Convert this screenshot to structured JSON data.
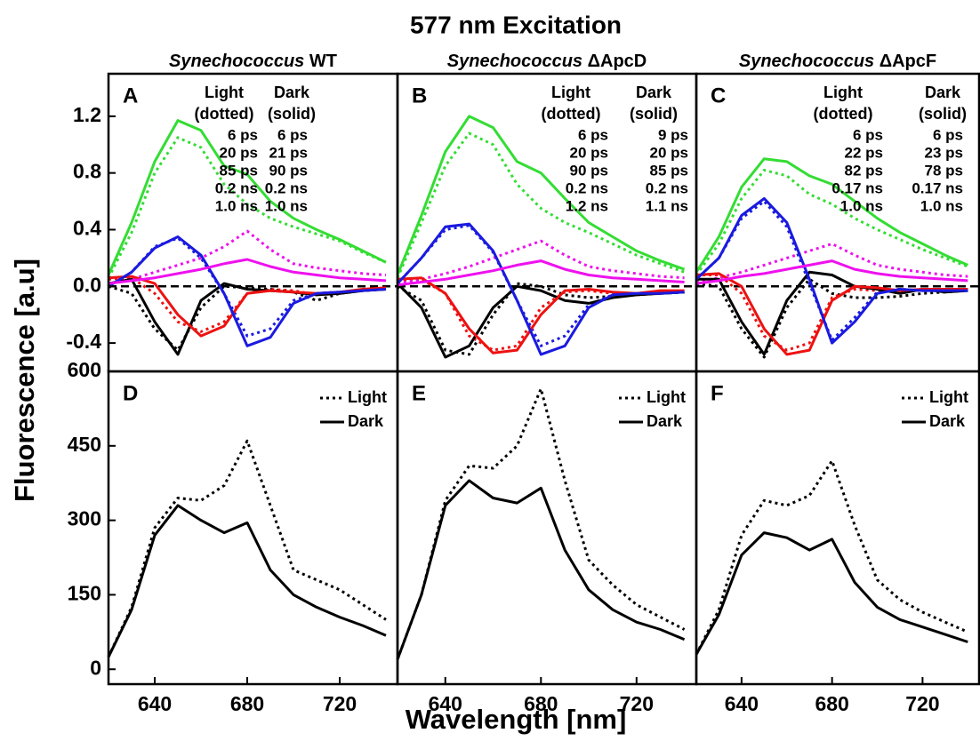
{
  "title": "577 nm Excitation",
  "x_label": "Wavelength [nm]",
  "y_label": "Fluorescence [a.u]",
  "chart_data": [
    {
      "type": "line",
      "panel_label": "A",
      "subtitle_italic": "Synechococcus",
      "subtitle": "WT",
      "legend_titles": [
        [
          "Light",
          "(dotted)"
        ],
        [
          "Dark",
          "(solid)"
        ]
      ],
      "x": [
        620,
        630,
        640,
        650,
        660,
        670,
        680,
        690,
        700,
        710,
        720,
        730,
        740
      ],
      "xlim": [
        620,
        745
      ],
      "ylim": [
        -0.6,
        1.5
      ],
      "yticks": [
        -0.4,
        {
          "value": 0,
          "label": "0.0"
        },
        0.4,
        0.8,
        1.2
      ],
      "zero_line": true,
      "series": [
        {
          "name": "6 ps",
          "color": "#000000",
          "dash": "dotted",
          "values": [
            0.0,
            -0.05,
            -0.3,
            -0.45,
            -0.15,
            0.0,
            -0.01,
            -0.02,
            -0.04,
            -0.1,
            -0.05,
            -0.03,
            -0.02
          ]
        },
        {
          "name": "20 ps",
          "color": "#ee1111",
          "dash": "dotted",
          "values": [
            0.05,
            0.06,
            -0.05,
            -0.25,
            -0.32,
            -0.25,
            -0.05,
            -0.02,
            -0.03,
            -0.06,
            -0.05,
            -0.03,
            -0.02
          ]
        },
        {
          "name": "85 ps",
          "color": "#1a1ae0",
          "dash": "dotted",
          "values": [
            0.0,
            0.1,
            0.28,
            0.34,
            0.2,
            -0.05,
            -0.35,
            -0.3,
            -0.1,
            -0.05,
            -0.04,
            -0.03,
            -0.02
          ]
        },
        {
          "name": "0.2 ns",
          "color": "#33dd33",
          "dash": "dotted",
          "values": [
            0.06,
            0.38,
            0.8,
            1.05,
            0.98,
            0.72,
            0.58,
            0.48,
            0.42,
            0.37,
            0.32,
            0.24,
            0.17
          ]
        },
        {
          "name": "1.0 ns",
          "color": "#ee11ee",
          "dash": "dotted",
          "values": [
            0.02,
            0.05,
            0.1,
            0.15,
            0.2,
            0.28,
            0.39,
            0.26,
            0.16,
            0.13,
            0.11,
            0.09,
            0.08
          ]
        },
        {
          "name": "6 ps",
          "color": "#000000",
          "dash": "solid",
          "values": [
            0.02,
            0.05,
            -0.25,
            -0.48,
            -0.1,
            0.02,
            -0.02,
            -0.03,
            -0.04,
            -0.06,
            -0.05,
            -0.03,
            -0.02
          ]
        },
        {
          "name": "21 ps",
          "color": "#ee1111",
          "dash": "solid",
          "values": [
            0.06,
            0.07,
            0.02,
            -0.2,
            -0.35,
            -0.28,
            -0.05,
            -0.03,
            -0.04,
            -0.05,
            -0.04,
            -0.02,
            -0.01
          ]
        },
        {
          "name": "90 ps",
          "color": "#1a1ae0",
          "dash": "solid",
          "values": [
            0.0,
            0.1,
            0.27,
            0.35,
            0.22,
            -0.05,
            -0.42,
            -0.36,
            -0.12,
            -0.05,
            -0.04,
            -0.03,
            -0.02
          ]
        },
        {
          "name": "0.2 ns",
          "color": "#33dd33",
          "dash": "solid",
          "values": [
            0.08,
            0.45,
            0.88,
            1.17,
            1.1,
            0.85,
            0.79,
            0.6,
            0.48,
            0.4,
            0.33,
            0.25,
            0.17
          ]
        },
        {
          "name": "1.0 ns",
          "color": "#ee11ee",
          "dash": "solid",
          "values": [
            0.02,
            0.04,
            0.06,
            0.09,
            0.12,
            0.16,
            0.19,
            0.14,
            0.1,
            0.08,
            0.06,
            0.05,
            0.04
          ]
        }
      ]
    },
    {
      "type": "line",
      "panel_label": "B",
      "subtitle_italic": "Synechococcus",
      "subtitle": "ΔApcD",
      "legend_titles": [
        [
          "Light",
          "(dotted)"
        ],
        [
          "Dark",
          "(solid)"
        ]
      ],
      "x": [
        620,
        630,
        640,
        650,
        660,
        670,
        680,
        690,
        700,
        710,
        720,
        730,
        740
      ],
      "xlim": [
        620,
        745
      ],
      "ylim": [
        -0.6,
        1.5
      ],
      "zero_line": true,
      "series": [
        {
          "name": "6 ps",
          "color": "#000000",
          "dash": "dotted",
          "values": [
            0.0,
            -0.1,
            -0.45,
            -0.48,
            -0.2,
            0.02,
            0.0,
            -0.06,
            -0.08,
            -0.07,
            -0.05,
            -0.05,
            -0.04
          ]
        },
        {
          "name": "20 ps",
          "color": "#ee1111",
          "dash": "dotted",
          "values": [
            0.04,
            0.05,
            -0.05,
            -0.35,
            -0.45,
            -0.42,
            -0.15,
            -0.04,
            -0.03,
            -0.05,
            -0.06,
            -0.05,
            -0.04
          ]
        },
        {
          "name": "90 ps",
          "color": "#1a1ae0",
          "dash": "dotted",
          "values": [
            0.02,
            0.2,
            0.4,
            0.43,
            0.24,
            -0.1,
            -0.42,
            -0.35,
            -0.13,
            -0.06,
            -0.05,
            -0.05,
            -0.04
          ]
        },
        {
          "name": "0.2 ns",
          "color": "#33dd33",
          "dash": "dotted",
          "values": [
            0.06,
            0.45,
            0.85,
            1.08,
            1.0,
            0.72,
            0.55,
            0.45,
            0.38,
            0.3,
            0.22,
            0.16,
            0.1
          ]
        },
        {
          "name": "1.2 ns",
          "color": "#ee11ee",
          "dash": "dotted",
          "values": [
            0.02,
            0.05,
            0.09,
            0.14,
            0.2,
            0.26,
            0.32,
            0.22,
            0.14,
            0.11,
            0.09,
            0.07,
            0.06
          ]
        },
        {
          "name": "9 ps",
          "color": "#000000",
          "dash": "solid",
          "values": [
            0.02,
            -0.15,
            -0.5,
            -0.42,
            -0.15,
            0.0,
            -0.03,
            -0.1,
            -0.12,
            -0.08,
            -0.06,
            -0.05,
            -0.04
          ]
        },
        {
          "name": "20 ps",
          "color": "#ee1111",
          "dash": "solid",
          "values": [
            0.05,
            0.06,
            -0.05,
            -0.3,
            -0.47,
            -0.45,
            -0.2,
            -0.03,
            -0.02,
            -0.04,
            -0.05,
            -0.03,
            -0.03
          ]
        },
        {
          "name": "85 ps",
          "color": "#1a1ae0",
          "dash": "solid",
          "values": [
            0.02,
            0.2,
            0.42,
            0.44,
            0.25,
            -0.1,
            -0.48,
            -0.42,
            -0.15,
            -0.06,
            -0.05,
            -0.05,
            -0.04
          ]
        },
        {
          "name": "0.2 ns",
          "color": "#33dd33",
          "dash": "solid",
          "values": [
            0.08,
            0.5,
            0.95,
            1.2,
            1.12,
            0.88,
            0.8,
            0.62,
            0.45,
            0.35,
            0.25,
            0.18,
            0.12
          ]
        },
        {
          "name": "1.1 ns",
          "color": "#ee11ee",
          "dash": "solid",
          "values": [
            0.01,
            0.03,
            0.05,
            0.08,
            0.11,
            0.15,
            0.18,
            0.12,
            0.08,
            0.06,
            0.05,
            0.04,
            0.03
          ]
        }
      ]
    },
    {
      "type": "line",
      "panel_label": "C",
      "subtitle_italic": "Synechococcus",
      "subtitle": "ΔApcF",
      "legend_titles": [
        [
          "Light",
          "(dotted)"
        ],
        [
          "Dark",
          "(solid)"
        ]
      ],
      "x": [
        620,
        630,
        640,
        650,
        660,
        670,
        680,
        690,
        700,
        710,
        720,
        730,
        740
      ],
      "xlim": [
        620,
        745
      ],
      "ylim": [
        -0.6,
        1.5
      ],
      "zero_line": true,
      "series": [
        {
          "name": "6 ps",
          "color": "#000000",
          "dash": "dotted",
          "values": [
            0.02,
            0.0,
            -0.3,
            -0.5,
            -0.15,
            0.05,
            -0.05,
            -0.08,
            -0.08,
            -0.07,
            -0.05,
            -0.04,
            -0.03
          ]
        },
        {
          "name": "22 ps",
          "color": "#ee1111",
          "dash": "dotted",
          "values": [
            0.08,
            0.08,
            -0.05,
            -0.35,
            -0.45,
            -0.4,
            -0.08,
            -0.02,
            -0.03,
            -0.02,
            -0.03,
            -0.02,
            -0.02
          ]
        },
        {
          "name": "82 ps",
          "color": "#1a1ae0",
          "dash": "dotted",
          "values": [
            0.05,
            0.2,
            0.48,
            0.6,
            0.42,
            0.02,
            -0.38,
            -0.22,
            -0.04,
            -0.02,
            -0.03,
            -0.03,
            -0.03
          ]
        },
        {
          "name": "0.17 ns",
          "color": "#33dd33",
          "dash": "dotted",
          "values": [
            0.08,
            0.3,
            0.62,
            0.82,
            0.78,
            0.65,
            0.58,
            0.48,
            0.4,
            0.33,
            0.26,
            0.2,
            0.14
          ]
        },
        {
          "name": "1.0 ns",
          "color": "#ee11ee",
          "dash": "dotted",
          "values": [
            0.03,
            0.06,
            0.1,
            0.15,
            0.2,
            0.25,
            0.3,
            0.22,
            0.15,
            0.12,
            0.1,
            0.08,
            0.07
          ]
        },
        {
          "name": "6 ps",
          "color": "#000000",
          "dash": "solid",
          "values": [
            0.05,
            0.05,
            -0.25,
            -0.48,
            -0.1,
            0.1,
            0.08,
            0.0,
            -0.02,
            -0.05,
            -0.02,
            -0.04,
            -0.03
          ]
        },
        {
          "name": "23 ps",
          "color": "#ee1111",
          "dash": "solid",
          "values": [
            0.08,
            0.09,
            0.0,
            -0.3,
            -0.48,
            -0.45,
            -0.1,
            0.0,
            -0.01,
            -0.03,
            -0.02,
            -0.02,
            -0.02
          ]
        },
        {
          "name": "78 ps",
          "color": "#1a1ae0",
          "dash": "solid",
          "values": [
            0.05,
            0.2,
            0.5,
            0.62,
            0.45,
            0.05,
            -0.4,
            -0.25,
            -0.05,
            -0.02,
            -0.03,
            -0.03,
            -0.03
          ]
        },
        {
          "name": "0.17 ns",
          "color": "#33dd33",
          "dash": "solid",
          "values": [
            0.1,
            0.35,
            0.7,
            0.9,
            0.88,
            0.78,
            0.72,
            0.6,
            0.48,
            0.38,
            0.3,
            0.22,
            0.15
          ]
        },
        {
          "name": "1.0 ns",
          "color": "#ee11ee",
          "dash": "solid",
          "values": [
            0.02,
            0.04,
            0.07,
            0.09,
            0.12,
            0.15,
            0.18,
            0.12,
            0.09,
            0.07,
            0.06,
            0.05,
            0.04
          ]
        }
      ]
    },
    {
      "type": "line",
      "panel_label": "D",
      "x": [
        620,
        630,
        640,
        650,
        660,
        670,
        680,
        690,
        700,
        710,
        720,
        730,
        740
      ],
      "xlim": [
        620,
        745
      ],
      "ylim": [
        -30,
        600
      ],
      "yticks": [
        0,
        150,
        300,
        450,
        600
      ],
      "xticks": [
        640,
        680,
        720
      ],
      "series": [
        {
          "name": "Light",
          "color": "#000000",
          "dash": "dotted",
          "values": [
            25,
            125,
            285,
            345,
            340,
            370,
            460,
            330,
            200,
            180,
            160,
            130,
            100
          ]
        },
        {
          "name": "Dark",
          "color": "#000000",
          "dash": "solid",
          "values": [
            25,
            120,
            270,
            330,
            300,
            275,
            295,
            200,
            150,
            125,
            105,
            88,
            68
          ]
        }
      ]
    },
    {
      "type": "line",
      "panel_label": "E",
      "x": [
        620,
        630,
        640,
        650,
        660,
        670,
        680,
        690,
        700,
        710,
        720,
        730,
        740
      ],
      "xlim": [
        620,
        745
      ],
      "ylim": [
        -30,
        600
      ],
      "xticks": [
        640,
        680,
        720
      ],
      "series": [
        {
          "name": "Light",
          "color": "#000000",
          "dash": "dotted",
          "values": [
            20,
            150,
            340,
            410,
            405,
            450,
            565,
            380,
            220,
            170,
            130,
            105,
            80
          ]
        },
        {
          "name": "Dark",
          "color": "#000000",
          "dash": "solid",
          "values": [
            20,
            150,
            330,
            380,
            345,
            335,
            365,
            240,
            160,
            120,
            95,
            80,
            60
          ]
        }
      ]
    },
    {
      "type": "line",
      "panel_label": "F",
      "x": [
        620,
        630,
        640,
        650,
        660,
        670,
        680,
        690,
        700,
        710,
        720,
        730,
        740
      ],
      "xlim": [
        620,
        745
      ],
      "ylim": [
        -30,
        600
      ],
      "xticks": [
        640,
        680,
        720
      ],
      "series": [
        {
          "name": "Light",
          "color": "#000000",
          "dash": "dotted",
          "values": [
            30,
            120,
            270,
            340,
            330,
            350,
            420,
            290,
            180,
            140,
            115,
            95,
            75
          ]
        },
        {
          "name": "Dark",
          "color": "#000000",
          "dash": "solid",
          "values": [
            30,
            110,
            230,
            275,
            265,
            240,
            262,
            175,
            125,
            100,
            85,
            70,
            55
          ]
        }
      ]
    }
  ]
}
